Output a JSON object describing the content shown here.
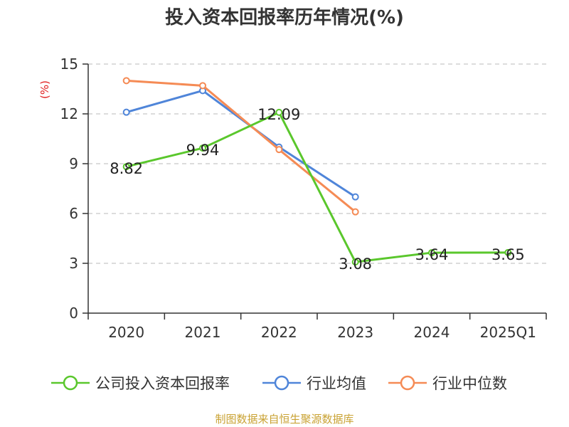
{
  "chart_data": {
    "type": "line",
    "title": "投入资本回报率历年情况(%)",
    "ylabel": "(%)",
    "ylim": [
      0,
      15
    ],
    "yticks": [
      0,
      3,
      6,
      9,
      12,
      15
    ],
    "categories": [
      "2020",
      "2021",
      "2022",
      "2023",
      "2024",
      "2025Q1"
    ],
    "grid": true,
    "legend_position": "bottom",
    "series": [
      {
        "name": "公司投入资本回报率",
        "color": "#5ac72c",
        "values": [
          8.82,
          9.94,
          12.09,
          3.08,
          3.64,
          3.65
        ],
        "labels": [
          "8.82",
          "9.94",
          "12.09",
          "3.08",
          "3.64",
          "3.65"
        ]
      },
      {
        "name": "行业均值",
        "color": "#4f85d9",
        "values": [
          12.1,
          13.4,
          10.0,
          7.0,
          null,
          null
        ]
      },
      {
        "name": "行业中位数",
        "color": "#f58b55",
        "values": [
          14.0,
          13.7,
          9.85,
          6.1,
          null,
          null
        ]
      }
    ]
  },
  "source": "制图数据来自恒生聚源数据库"
}
